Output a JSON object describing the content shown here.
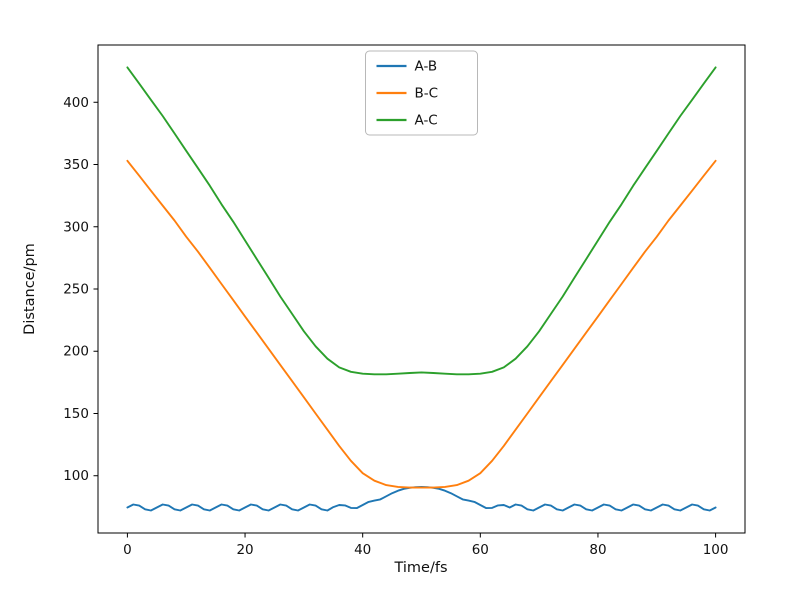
{
  "chart_data": {
    "type": "line",
    "title": "",
    "xlabel": "Time/fs",
    "ylabel": "Distance/pm",
    "xlim": [
      -5,
      105
    ],
    "ylim": [
      54,
      446
    ],
    "xticks": [
      0,
      20,
      40,
      60,
      80,
      100
    ],
    "yticks": [
      100,
      150,
      200,
      250,
      300,
      350,
      400
    ],
    "grid": false,
    "legend": {
      "position": "upper center",
      "labels": [
        "A-B",
        "B-C",
        "A-C"
      ]
    },
    "series": [
      {
        "name": "A-B",
        "color": "#1f77b4",
        "x": [
          0,
          1,
          2,
          3,
          4,
          5,
          6,
          7,
          8,
          9,
          10,
          11,
          12,
          13,
          14,
          15,
          16,
          17,
          18,
          19,
          20,
          21,
          22,
          23,
          24,
          25,
          26,
          27,
          28,
          29,
          30,
          31,
          32,
          33,
          34,
          35,
          36,
          37,
          38,
          39,
          40,
          41,
          42,
          43,
          44,
          45,
          46,
          47,
          48,
          49,
          50,
          51,
          52,
          53,
          54,
          55,
          56,
          57,
          58,
          59,
          60,
          61,
          62,
          63,
          64,
          65,
          66,
          67,
          68,
          69,
          70,
          71,
          72,
          73,
          74,
          75,
          76,
          77,
          78,
          79,
          80,
          81,
          82,
          83,
          84,
          85,
          86,
          87,
          88,
          89,
          90,
          91,
          92,
          93,
          94,
          95,
          96,
          97,
          98,
          99,
          100
        ],
        "values": [
          74.5,
          76.9,
          76.0,
          73.0,
          72.1,
          74.5,
          76.9,
          76.0,
          73.0,
          72.1,
          74.5,
          76.9,
          76.0,
          73.0,
          72.1,
          74.5,
          76.9,
          76.0,
          73.0,
          72.1,
          74.5,
          76.9,
          76.0,
          73.0,
          72.1,
          74.5,
          76.9,
          76.0,
          73.0,
          72.1,
          74.5,
          76.9,
          76.0,
          73.0,
          72.1,
          74.8,
          76.5,
          76.2,
          74.2,
          74.0,
          76.5,
          79.0,
          80.0,
          81.0,
          83.5,
          86.0,
          88.0,
          89.5,
          90.3,
          90.8,
          91.0,
          90.8,
          90.3,
          89.5,
          88.0,
          86.0,
          83.5,
          81.0,
          80.0,
          79.0,
          76.5,
          74.0,
          74.2,
          76.2,
          76.5,
          74.5,
          76.9,
          76.0,
          73.0,
          72.1,
          74.5,
          76.9,
          76.0,
          73.0,
          72.1,
          74.5,
          76.9,
          76.0,
          73.0,
          72.1,
          74.5,
          76.9,
          76.0,
          73.0,
          72.1,
          74.5,
          76.9,
          76.0,
          73.0,
          72.1,
          74.5,
          76.9,
          76.0,
          73.0,
          72.1,
          74.5,
          76.9,
          76.0,
          73.0,
          72.1,
          74.5
        ]
      },
      {
        "name": "B-C",
        "color": "#ff7f0e",
        "x": [
          0,
          2,
          4,
          6,
          8,
          10,
          12,
          14,
          16,
          18,
          20,
          22,
          24,
          26,
          28,
          30,
          32,
          34,
          36,
          38,
          40,
          42,
          44,
          46,
          48,
          50,
          52,
          54,
          56,
          58,
          60,
          62,
          64,
          66,
          68,
          70,
          72,
          74,
          76,
          78,
          80,
          82,
          84,
          86,
          88,
          90,
          92,
          94,
          96,
          98,
          100
        ],
        "values": [
          353,
          341,
          329,
          317,
          305,
          292,
          280,
          267,
          254,
          241,
          228,
          215,
          202,
          189,
          176,
          163,
          150,
          137,
          124,
          112,
          102,
          96,
          92.5,
          91,
          90.5,
          90.5,
          90.5,
          91,
          92.5,
          96,
          102,
          112,
          124,
          137,
          150,
          163,
          176,
          189,
          202,
          215,
          228,
          241,
          254,
          267,
          280,
          292,
          305,
          317,
          329,
          341,
          353
        ]
      },
      {
        "name": "A-C",
        "color": "#2ca02c",
        "x": [
          0,
          2,
          4,
          6,
          8,
          10,
          12,
          14,
          16,
          18,
          20,
          22,
          24,
          26,
          28,
          30,
          32,
          34,
          36,
          38,
          40,
          42,
          44,
          46,
          48,
          50,
          52,
          54,
          56,
          58,
          60,
          62,
          64,
          66,
          68,
          70,
          72,
          74,
          76,
          78,
          80,
          82,
          84,
          86,
          88,
          90,
          92,
          94,
          96,
          98,
          100
        ],
        "values": [
          428,
          415,
          402,
          389,
          375,
          361,
          347,
          333,
          318,
          304,
          289,
          274,
          259,
          244,
          230,
          216,
          204,
          194,
          187,
          183.5,
          182,
          181.5,
          181.5,
          182,
          182.5,
          183,
          182.5,
          182,
          181.5,
          181.5,
          182,
          183.5,
          187,
          194,
          204,
          216,
          230,
          244,
          259,
          274,
          289,
          304,
          318,
          333,
          347,
          361,
          375,
          389,
          402,
          415,
          428
        ]
      }
    ]
  }
}
